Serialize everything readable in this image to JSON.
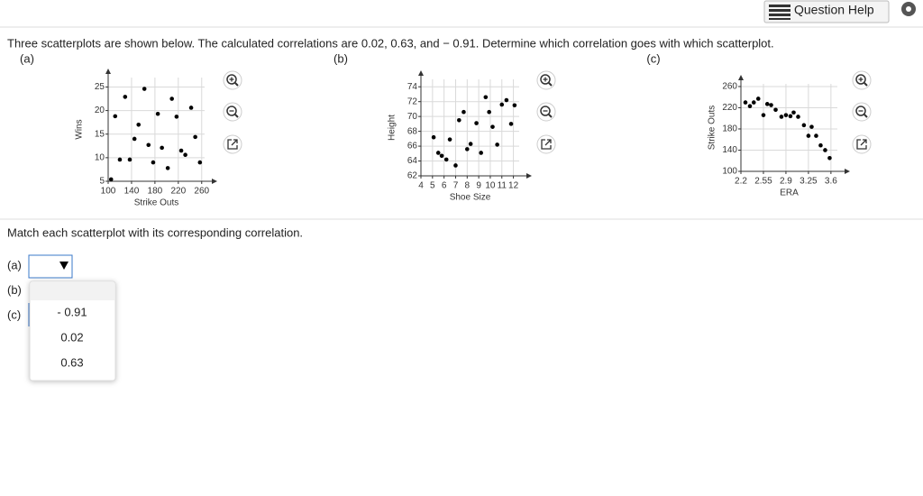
{
  "toolbar": {
    "help": "Question Help"
  },
  "question": "Three scatterplots are shown below. The calculated correlations are 0.02, 0.63, and − 0.91. Determine which correlation goes with which scatterplot.",
  "plots": [
    {
      "label": "(a)",
      "type": "scatter",
      "xlabel": "Strike Outs",
      "ylabel": "Wins",
      "x": [
        105,
        112,
        120,
        129,
        137,
        145,
        152,
        162,
        169,
        177,
        185,
        192,
        202,
        209,
        217,
        225,
        232,
        242,
        249,
        257
      ],
      "y": [
        5.4,
        18.8,
        9.6,
        22.9,
        9.6,
        14,
        17,
        24.6,
        12.7,
        9,
        19.3,
        12.1,
        7.8,
        22.5,
        18.7,
        11.5,
        10.6,
        20.6,
        14.4,
        9
      ],
      "xlim": [
        100,
        265
      ],
      "ylim": [
        5,
        27
      ],
      "xticks": [
        100,
        140,
        180,
        220,
        260
      ],
      "yticks": [
        5,
        10,
        15,
        20,
        25
      ],
      "grid": true,
      "color": "#000000"
    },
    {
      "label": "(b)",
      "type": "scatter",
      "xlabel": "Shoe Size",
      "ylabel": "Height",
      "x": [
        5.1,
        5.5,
        5.8,
        6.2,
        6.5,
        7,
        7.3,
        7.7,
        8,
        8.3,
        8.8,
        9.2,
        9.6,
        9.9,
        10.2,
        10.6,
        11,
        11.4,
        11.8,
        12.1
      ],
      "y": [
        67.2,
        65.1,
        64.7,
        64.2,
        66.9,
        63.4,
        69.5,
        70.6,
        65.6,
        66.3,
        69.1,
        65.1,
        72.6,
        70.6,
        68.6,
        66.2,
        71.6,
        72.2,
        69,
        71.5
      ],
      "xlim": [
        4,
        12.5
      ],
      "ylim": [
        62,
        75
      ],
      "xticks": [
        4,
        5,
        6,
        7,
        8,
        9,
        10,
        11,
        12
      ],
      "yticks": [
        62,
        64,
        66,
        68,
        70,
        72,
        74
      ],
      "grid": true,
      "color": "#000000"
    },
    {
      "label": "(c)",
      "type": "scatter",
      "xlabel": "ERA",
      "ylabel": "Strike Outs",
      "x": [
        2.27,
        2.34,
        2.4,
        2.47,
        2.55,
        2.61,
        2.67,
        2.74,
        2.83,
        2.9,
        2.97,
        3.02,
        3.09,
        3.18,
        3.25,
        3.3,
        3.37,
        3.44,
        3.51,
        3.58
      ],
      "y": [
        230,
        223,
        230,
        237,
        206,
        227,
        225,
        216,
        203,
        206,
        204,
        211,
        203,
        187,
        167,
        184,
        167,
        149,
        140,
        125
      ],
      "xlim": [
        2.2,
        3.7
      ],
      "ylim": [
        100,
        265
      ],
      "xticks": [
        2.2,
        2.55,
        2.9,
        3.25,
        3.6
      ],
      "yticks": [
        100,
        140,
        180,
        220,
        260
      ],
      "grid": true,
      "color": "#000000"
    }
  ],
  "prompt": "Match each scatterplot with its corresponding correlation.",
  "rows": [
    "(a)",
    "(b)",
    "(c)"
  ],
  "options": [
    "- 0.91",
    "0.02",
    "0.63"
  ]
}
